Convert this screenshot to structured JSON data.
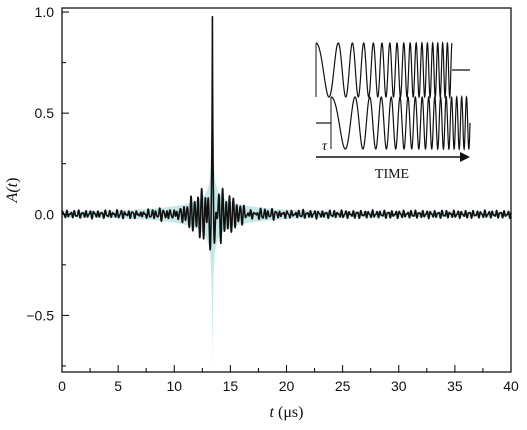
{
  "chart_data": {
    "type": "line",
    "xlabel_var": "t",
    "xlabel_unit": " (μs)",
    "ylabel_prefix": "A(",
    "ylabel_var": "t",
    "ylabel_suffix": ")",
    "xlim": [
      0,
      40
    ],
    "ylim": [
      -0.78,
      1.02
    ],
    "x_ticks": [
      0,
      5,
      10,
      15,
      20,
      25,
      30,
      35,
      40
    ],
    "y_ticks": [
      -0.5,
      0.0,
      0.5,
      1.0
    ],
    "y_tick_labels": [
      "−0.5",
      "0.0",
      "0.5",
      "1.0"
    ],
    "grid": false,
    "series": [
      {
        "style": "black-line",
        "description_values": {
          "peak_time": 13.4,
          "peak_value": 1.0,
          "first_side_minima": [
            -0.49,
            -0.49
          ],
          "background_noise_amplitude": 0.012
        }
      },
      {
        "style": "cyan-envelope",
        "description_values": {
          "peak_upper": 1.02,
          "peak_lower": -0.78,
          "envelope_halfwidth_at_9us": 0.06
        }
      }
    ],
    "inset": {
      "label_tau": "τ",
      "label_time": "TIME"
    }
  },
  "colors": {
    "line": "#111111",
    "envelope": "#c6e8e8",
    "axis": "#000000"
  }
}
